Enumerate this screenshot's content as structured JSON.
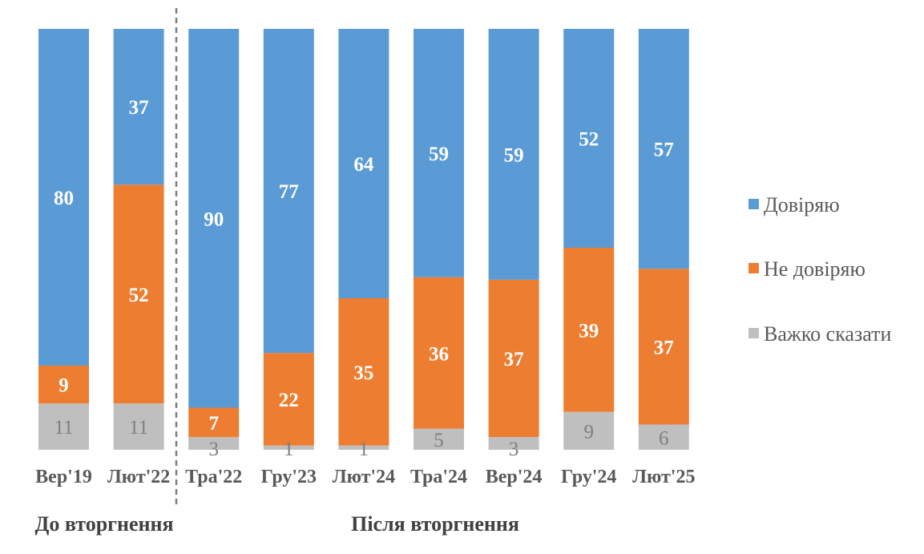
{
  "chart_data": {
    "type": "bar",
    "stacked": "100%",
    "categories": [
      "Вер'19",
      "Лют'22",
      "Тра'22",
      "Гру'23",
      "Лют'24",
      "Тра'24",
      "Вер'24",
      "Гру'24",
      "Лют'25"
    ],
    "series": [
      {
        "name": "Важко сказати",
        "color": "#BFBFBF",
        "values": [
          11,
          11,
          3,
          1,
          1,
          5,
          3,
          9,
          6
        ]
      },
      {
        "name": "Не довіряю",
        "color": "#ED7D31",
        "values": [
          9,
          52,
          7,
          22,
          35,
          36,
          37,
          39,
          37
        ]
      },
      {
        "name": "Довіряю",
        "color": "#5B9BD5",
        "values": [
          80,
          37,
          90,
          77,
          64,
          59,
          59,
          52,
          57
        ]
      }
    ],
    "legend_order": [
      "Довіряю",
      "Не довіряю",
      "Важко сказати"
    ],
    "legend_position": "right",
    "groups": [
      {
        "label": "До вторгнення",
        "categories": [
          "Вер'19",
          "Лют'22"
        ]
      },
      {
        "label": "Після вторгнення",
        "categories": [
          "Тра'22",
          "Гру'23",
          "Лют'24",
          "Тра'24",
          "Вер'24",
          "Гру'24",
          "Лют'25"
        ]
      }
    ],
    "separator": "dashed line between Лют'22 and Тра'22",
    "grid": false,
    "title": "",
    "xlabel": "",
    "ylabel": ""
  }
}
